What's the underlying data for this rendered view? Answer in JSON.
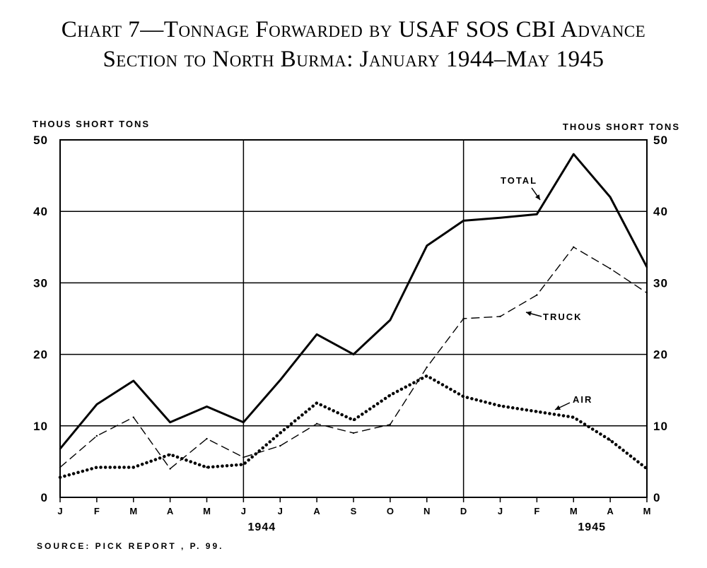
{
  "title_line_1": "Chart 7—Tonnage Forwarded by USAF SOS CBI Advance",
  "title_line_2": "Section to North Burma: January 1944–May 1945",
  "source": "SOURCE: PICK REPORT , P. 99.",
  "chart_data": {
    "type": "line",
    "title": "Chart 7—Tonnage Forwarded by USAF SOS CBI Advance Section to North Burma: January 1944–May 1945",
    "ylabel_left": "THOUS SHORT TONS",
    "ylabel_right": "THOUS SHORT TONS",
    "ylim": [
      0,
      50
    ],
    "yticks": [
      0,
      10,
      20,
      30,
      40,
      50
    ],
    "grid": true,
    "categories": [
      "J",
      "F",
      "M",
      "A",
      "M",
      "J",
      "J",
      "A",
      "S",
      "O",
      "N",
      "D",
      "J",
      "F",
      "M",
      "A",
      "M"
    ],
    "year_labels": [
      {
        "label": "1944",
        "at_index": 5.5
      },
      {
        "label": "1945",
        "at_index": 14.5
      }
    ],
    "series": [
      {
        "name": "TOTAL",
        "style": "solid",
        "values": [
          6.8,
          13.0,
          16.3,
          10.5,
          12.7,
          10.5,
          16.4,
          22.8,
          20.0,
          24.8,
          35.2,
          38.7,
          39.1,
          39.6,
          48.0,
          42.0,
          32.2
        ]
      },
      {
        "name": "TRUCK",
        "style": "dashed",
        "values": [
          4.2,
          8.6,
          11.2,
          4.0,
          8.2,
          5.6,
          7.2,
          10.3,
          9.0,
          10.2,
          18.2,
          25.0,
          25.3,
          28.3,
          35.0,
          32.0,
          28.6
        ]
      },
      {
        "name": "AIR",
        "style": "dotted",
        "values": [
          2.8,
          4.2,
          4.2,
          6.0,
          4.2,
          4.6,
          9.0,
          13.2,
          10.8,
          14.3,
          17.0,
          14.1,
          12.8,
          12.0,
          11.2,
          8.0,
          4.0
        ]
      }
    ]
  }
}
